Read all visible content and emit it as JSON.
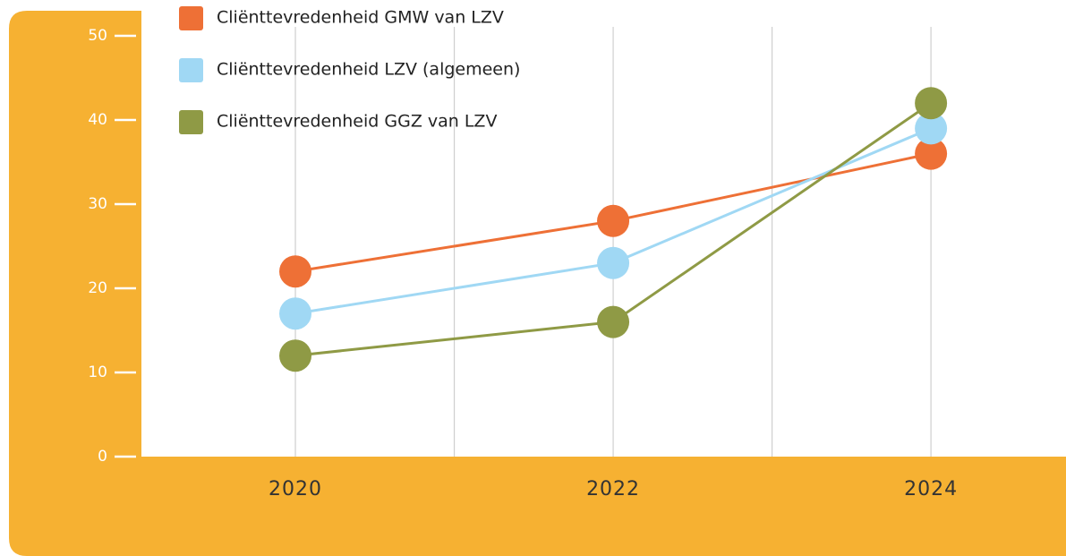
{
  "chart_data": {
    "type": "line",
    "x": [
      2020,
      2022,
      2024
    ],
    "xlim": [
      2019,
      2024.85
    ],
    "xticks": [
      2020,
      2022,
      2024
    ],
    "minor_xticks": [
      2021,
      2023
    ],
    "ylim": [
      0,
      50
    ],
    "yticks": [
      0,
      10,
      20,
      30,
      40,
      50
    ],
    "grid": true,
    "legend": "top-left",
    "series": [
      {
        "name": "Cliënttevredenheid GMW van LZV",
        "color": "#ee7036",
        "values": [
          22,
          28,
          36
        ]
      },
      {
        "name": "Cliënttevredenheid LZV (algemeen)",
        "color": "#a0d8f4",
        "values": [
          17,
          23,
          39
        ]
      },
      {
        "name": "Cliënttevredenheid GGZ van LZV",
        "color": "#8f9a45",
        "values": [
          12,
          16,
          42
        ]
      }
    ]
  }
}
